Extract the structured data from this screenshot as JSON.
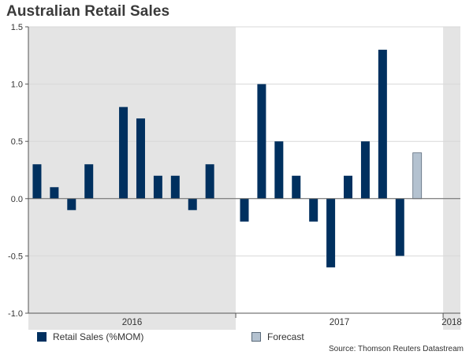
{
  "chart_data": {
    "type": "bar",
    "title": "Australian Retail Sales",
    "ylim": [
      -1.0,
      1.5
    ],
    "yticks": [
      -1.0,
      -0.5,
      0.0,
      0.5,
      1.0,
      1.5
    ],
    "ytick_labels": [
      "-1.0",
      "-0.5",
      "0.0",
      "0.5",
      "1.0",
      "1.5"
    ],
    "months": [
      "2016-01",
      "2016-02",
      "2016-03",
      "2016-04",
      "2016-05",
      "2016-06",
      "2016-07",
      "2016-08",
      "2016-09",
      "2016-10",
      "2016-11",
      "2016-12",
      "2017-01",
      "2017-02",
      "2017-03",
      "2017-04",
      "2017-05",
      "2017-06",
      "2017-07",
      "2017-08",
      "2017-09",
      "2017-10",
      "2017-11",
      "2017-12",
      "2018-01"
    ],
    "series": [
      {
        "name": "Retail Sales (%MOM)",
        "color": "#00305f",
        "values": [
          0.3,
          0.1,
          -0.1,
          0.3,
          0.0,
          0.8,
          0.7,
          0.2,
          0.2,
          -0.1,
          0.3,
          0.0,
          -0.2,
          1.0,
          0.5,
          0.2,
          -0.2,
          -0.6,
          0.2,
          0.5,
          1.3,
          -0.5,
          null,
          null,
          null
        ]
      },
      {
        "name": "Forecast",
        "color": "#b4c2d0",
        "values": [
          null,
          null,
          null,
          null,
          null,
          null,
          null,
          null,
          null,
          null,
          null,
          null,
          null,
          null,
          null,
          null,
          null,
          null,
          null,
          null,
          null,
          null,
          0.4,
          null,
          null
        ]
      }
    ],
    "year_labels": [
      "2016",
      "2017",
      "2018"
    ],
    "shaded_periods": [
      "2016",
      "2018"
    ],
    "grid": true
  },
  "legend": {
    "actual_label": "Retail Sales (%MOM)",
    "forecast_label": "Forecast"
  },
  "source": "Source: Thomson Reuters Datastream",
  "colors": {
    "shade": "#e4e4e4",
    "grid": "#d8d8d8",
    "axis": "#555555"
  }
}
